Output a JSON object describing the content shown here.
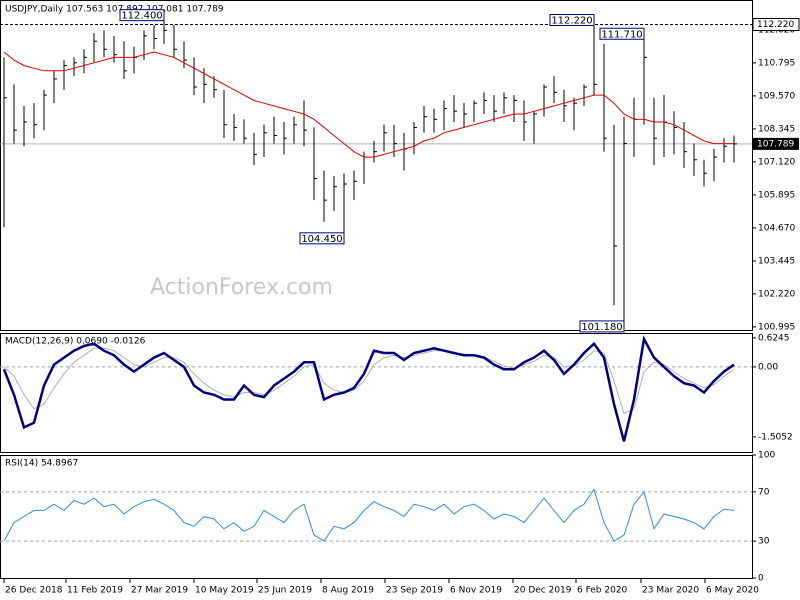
{
  "chart_data": {
    "type": "ohlc",
    "title": "USDJPY,Daily  107.563 107.897 107.081 107.789",
    "watermark": "ActionForex.com",
    "xlim": [
      -0.4,
      74.8
    ],
    "xticks": [
      {
        "value": 0,
        "label": "26 Dec 2018"
      },
      {
        "value": 6.2,
        "label": "11 Feb 2019"
      },
      {
        "value": 12.6,
        "label": "27 Mar 2019"
      },
      {
        "value": 19,
        "label": "10 May 2019"
      },
      {
        "value": 25.3,
        "label": "25 Jun 2019"
      },
      {
        "value": 31.7,
        "label": "8 Aug 2019"
      },
      {
        "value": 38.1,
        "label": "23 Sep 2019"
      },
      {
        "value": 44.5,
        "label": "6 Nov 2019"
      },
      {
        "value": 50.9,
        "label": "20 Dec 2019"
      },
      {
        "value": 57.2,
        "label": "6 Feb 2020"
      },
      {
        "value": 63.7,
        "label": "23 Mar 2020"
      },
      {
        "value": 70.1,
        "label": "6 May 2020"
      }
    ],
    "ylim": [
      100.88,
      113.13
    ],
    "yticks": [
      100.995,
      {
        "value": 102.22,
        "label": "102.220"
      },
      103.445,
      {
        "value": 104.67,
        "label": "104.670"
      },
      105.895,
      {
        "value": 107.12,
        "label": "107.120"
      },
      108.345,
      {
        "value": 109.57,
        "label": "109.570"
      },
      110.795,
      {
        "value": 112.02,
        "label": "112.020"
      }
    ],
    "color": "#000000",
    "high": [
      111,
      110,
      109.2,
      109.3,
      109.8,
      110.5,
      110.9,
      111,
      111.3,
      111.9,
      112,
      111.8,
      111.6,
      111.4,
      112,
      112.2,
      112.4,
      112.2,
      111.6,
      111,
      110.6,
      110.3,
      109.8,
      108.9,
      108.7,
      108.2,
      108.5,
      108.8,
      108.6,
      108.8,
      109.4,
      108.4,
      106.8,
      106.6,
      106.7,
      106.8,
      107.5,
      107.9,
      108.5,
      108.5,
      108.2,
      108.6,
      109.2,
      109.1,
      109.4,
      109.6,
      109.3,
      109.4,
      109.7,
      109.6,
      109.7,
      109.6,
      109.4,
      109,
      110,
      110.3,
      109.8,
      109.5,
      110,
      112.22,
      111.5,
      108.5,
      108.8,
      109.5,
      111.71,
      109.5,
      109.6,
      109,
      108.6,
      107.8,
      107.2,
      107.6,
      108,
      108.1
    ],
    "low": [
      104.7,
      107.8,
      107.7,
      108,
      108.3,
      109.3,
      109.8,
      110.3,
      110.4,
      110.8,
      111,
      110.8,
      110.2,
      110.4,
      110.9,
      111.3,
      111.5,
      111,
      110.6,
      109.6,
      109.3,
      109.5,
      108,
      107.9,
      107.8,
      107,
      107.3,
      107.8,
      107.4,
      107.8,
      107.7,
      105.7,
      104.9,
      105.3,
      104.45,
      105.7,
      106.3,
      107.1,
      107.5,
      107.3,
      106.8,
      107.4,
      108.2,
      108.2,
      108.3,
      108.6,
      108.4,
      108.6,
      108.9,
      108.6,
      108.9,
      108.6,
      107.9,
      107.8,
      108.8,
      109.3,
      108.6,
      108.3,
      109.2,
      109.6,
      107.5,
      101.8,
      101.18,
      107.3,
      108.5,
      107,
      107.3,
      107.4,
      106.9,
      106.6,
      106.2,
      106.4,
      107.1,
      107.1
    ],
    "close": [
      109.5,
      108.3,
      108.6,
      108.5,
      109.6,
      110.2,
      110.7,
      110.8,
      111,
      111.6,
      111.3,
      111.1,
      110.5,
      111,
      111.8,
      111.7,
      112,
      111.3,
      110.9,
      109.9,
      110,
      109.8,
      108.5,
      108.4,
      108,
      107.4,
      108.2,
      108.1,
      108,
      108.5,
      108.3,
      106.5,
      105.7,
      106.2,
      106.3,
      106.4,
      107.3,
      107.5,
      108.2,
      107.8,
      107.6,
      108.4,
      108.8,
      108.7,
      109.1,
      109,
      108.9,
      109.3,
      109.4,
      109,
      109.5,
      109.4,
      108.6,
      108.9,
      109.9,
      109.7,
      109.2,
      109.3,
      109.9,
      110,
      108,
      104,
      107.8,
      108.7,
      111,
      108,
      108.6,
      108.4,
      107.5,
      107.2,
      106.7,
      107.3,
      107.7,
      107.789
    ],
    "ma": {
      "color": "#e00000",
      "values": [
        111.2,
        110.9,
        110.7,
        110.6,
        110.5,
        110.5,
        110.5,
        110.6,
        110.7,
        110.8,
        110.9,
        111,
        111,
        111,
        111.1,
        111.2,
        111.1,
        111,
        110.8,
        110.6,
        110.4,
        110.2,
        110,
        109.8,
        109.6,
        109.4,
        109.3,
        109.2,
        109.1,
        109,
        108.9,
        108.7,
        108.4,
        108.1,
        107.8,
        107.5,
        107.3,
        107.3,
        107.4,
        107.5,
        107.6,
        107.7,
        107.9,
        108,
        108.2,
        108.3,
        108.4,
        108.5,
        108.6,
        108.7,
        108.8,
        108.9,
        108.9,
        109,
        109.1,
        109.2,
        109.3,
        109.4,
        109.5,
        109.6,
        109.6,
        109.3,
        108.9,
        108.7,
        108.7,
        108.6,
        108.6,
        108.5,
        108.3,
        108.1,
        107.9,
        107.8,
        107.8,
        107.8
      ]
    },
    "hline": {
      "value": 112.22,
      "label": "112.220"
    },
    "last": {
      "value": 107.789,
      "label": "107.789"
    },
    "annotations": [
      {
        "value": 112.4,
        "label": "112.400"
      },
      {
        "value": 104.45,
        "label": "104.450"
      },
      {
        "value": 112.22,
        "label": "112.220"
      },
      {
        "value": 111.71,
        "label": "111.710"
      },
      {
        "value": 101.18,
        "label": "101.180"
      }
    ],
    "macd": {
      "title": "MACD(12,26,9) 0.0690 -0.0126",
      "ylim": [
        -1.83,
        0.73
      ],
      "yticks": [
        0.6245,
        {
          "value": 0,
          "label": "0.00"
        },
        -1.5052
      ],
      "color": "#000080",
      "signal_color": "#b0b0b0",
      "values": [
        -0.05,
        -0.6,
        -1.3,
        -1.2,
        -0.4,
        0.05,
        0.2,
        0.35,
        0.45,
        0.5,
        0.35,
        0.25,
        0.05,
        -0.1,
        0.05,
        0.2,
        0.3,
        0.15,
        0,
        -0.4,
        -0.55,
        -0.6,
        -0.7,
        -0.7,
        -0.4,
        -0.6,
        -0.65,
        -0.4,
        -0.25,
        -0.1,
        0.1,
        0.1,
        -0.7,
        -0.6,
        -0.55,
        -0.45,
        -0.15,
        0.35,
        0.3,
        0.3,
        0.15,
        0.3,
        0.35,
        0.4,
        0.35,
        0.3,
        0.25,
        0.25,
        0.2,
        0.05,
        -0.05,
        -0.05,
        0.1,
        0.2,
        0.35,
        0.15,
        -0.15,
        0.05,
        0.3,
        0.5,
        0.2,
        -0.8,
        -1.6,
        -0.7,
        0.6,
        0.2,
        0,
        -0.2,
        -0.35,
        -0.4,
        -0.55,
        -0.3,
        -0.1,
        0.05
      ],
      "signal": [
        0,
        -0.2,
        -0.6,
        -0.9,
        -0.8,
        -0.45,
        -0.15,
        0.1,
        0.25,
        0.4,
        0.4,
        0.35,
        0.2,
        0.05,
        0,
        0.1,
        0.2,
        0.2,
        0.1,
        -0.15,
        -0.35,
        -0.5,
        -0.6,
        -0.65,
        -0.55,
        -0.55,
        -0.6,
        -0.5,
        -0.35,
        -0.2,
        0,
        0.05,
        -0.35,
        -0.5,
        -0.55,
        -0.5,
        -0.3,
        0.05,
        0.2,
        0.25,
        0.2,
        0.25,
        0.3,
        0.35,
        0.35,
        0.3,
        0.28,
        0.25,
        0.22,
        0.12,
        0.02,
        -0.03,
        0.05,
        0.12,
        0.25,
        0.2,
        0,
        0.02,
        0.15,
        0.35,
        0.3,
        -0.3,
        -1,
        -0.9,
        -0.1,
        0.1,
        0.05,
        -0.1,
        -0.25,
        -0.35,
        -0.45,
        -0.38,
        -0.2,
        -0.05
      ]
    },
    "rsi": {
      "title": "RSI(14) 54.8967",
      "ylim": [
        0,
        100
      ],
      "yticks": [
        100,
        70,
        30,
        0
      ],
      "levels": [
        70,
        30
      ],
      "color": "#2f8ee0",
      "values": [
        30,
        45,
        50,
        55,
        55,
        60,
        55,
        63,
        60,
        65,
        58,
        60,
        52,
        58,
        62,
        64,
        60,
        55,
        45,
        42,
        50,
        48,
        40,
        45,
        38,
        42,
        55,
        50,
        45,
        55,
        60,
        35,
        30,
        42,
        40,
        45,
        55,
        62,
        58,
        55,
        50,
        60,
        58,
        55,
        60,
        52,
        58,
        60,
        55,
        48,
        52,
        50,
        45,
        55,
        65,
        55,
        45,
        55,
        60,
        72,
        45,
        30,
        35,
        60,
        70,
        40,
        52,
        50,
        48,
        45,
        40,
        50,
        56,
        55
      ]
    }
  }
}
